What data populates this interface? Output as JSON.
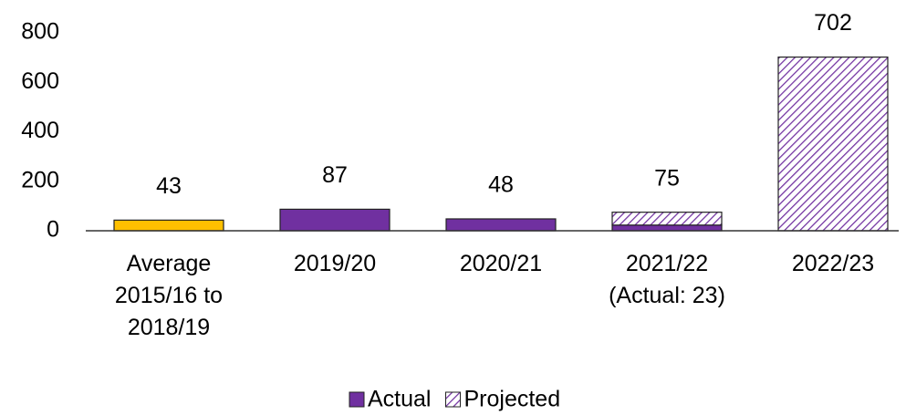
{
  "chart_data": {
    "type": "stacked_bar",
    "categories": [
      "Average\n2015/16 to\n2018/19",
      "2019/20",
      "2020/21",
      "2021/22\n(Actual: 23)",
      "2022/23"
    ],
    "series": [
      {
        "name": "Actual",
        "color": "#7030a0",
        "point_colors": [
          "#ffc000",
          "#7030a0",
          "#7030a0",
          "#7030a0",
          "#7030a0"
        ],
        "values": [
          43,
          87,
          48,
          23,
          null
        ]
      },
      {
        "name": "Projected",
        "color": "#7030a0",
        "pattern": "hatch",
        "values": [
          null,
          null,
          null,
          52,
          702
        ]
      }
    ],
    "total_labels": [
      43,
      87,
      48,
      75,
      702
    ],
    "ylim": [
      0,
      800
    ],
    "yticks": [
      0,
      200,
      400,
      600,
      800
    ],
    "grid": false,
    "legend": "bottom"
  }
}
